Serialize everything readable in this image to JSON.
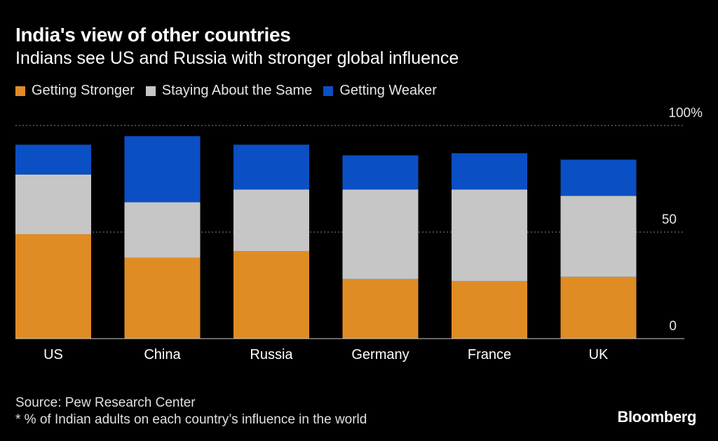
{
  "chart_data": {
    "type": "bar",
    "stacked": true,
    "title": "India's view of other countries",
    "subtitle": "Indians see US and Russia with stronger global influence",
    "categories": [
      "US",
      "China",
      "Russia",
      "Germany",
      "France",
      "UK"
    ],
    "series": [
      {
        "name": "Getting Stronger",
        "color": "#e08c25",
        "values": [
          49,
          38,
          41,
          28,
          27,
          29
        ]
      },
      {
        "name": "Staying About the Same",
        "color": "#c6c6c6",
        "values": [
          28,
          26,
          29,
          42,
          43,
          38
        ]
      },
      {
        "name": "Getting Weaker",
        "color": "#0b4fc4",
        "values": [
          14,
          31,
          21,
          16,
          17,
          17
        ]
      }
    ],
    "y_ticks": [
      {
        "value": 0,
        "label": "0"
      },
      {
        "value": 50,
        "label": "50"
      },
      {
        "value": 100,
        "label": "100%"
      }
    ],
    "ylim": [
      0,
      100
    ],
    "xlabel": "",
    "ylabel": "",
    "legend_position": "top-left",
    "gridlines": "dotted"
  },
  "footer": {
    "source": "Source: Pew Research Center",
    "note": "* % of Indian adults on each country’s influence in the world",
    "brand": "Bloomberg"
  }
}
